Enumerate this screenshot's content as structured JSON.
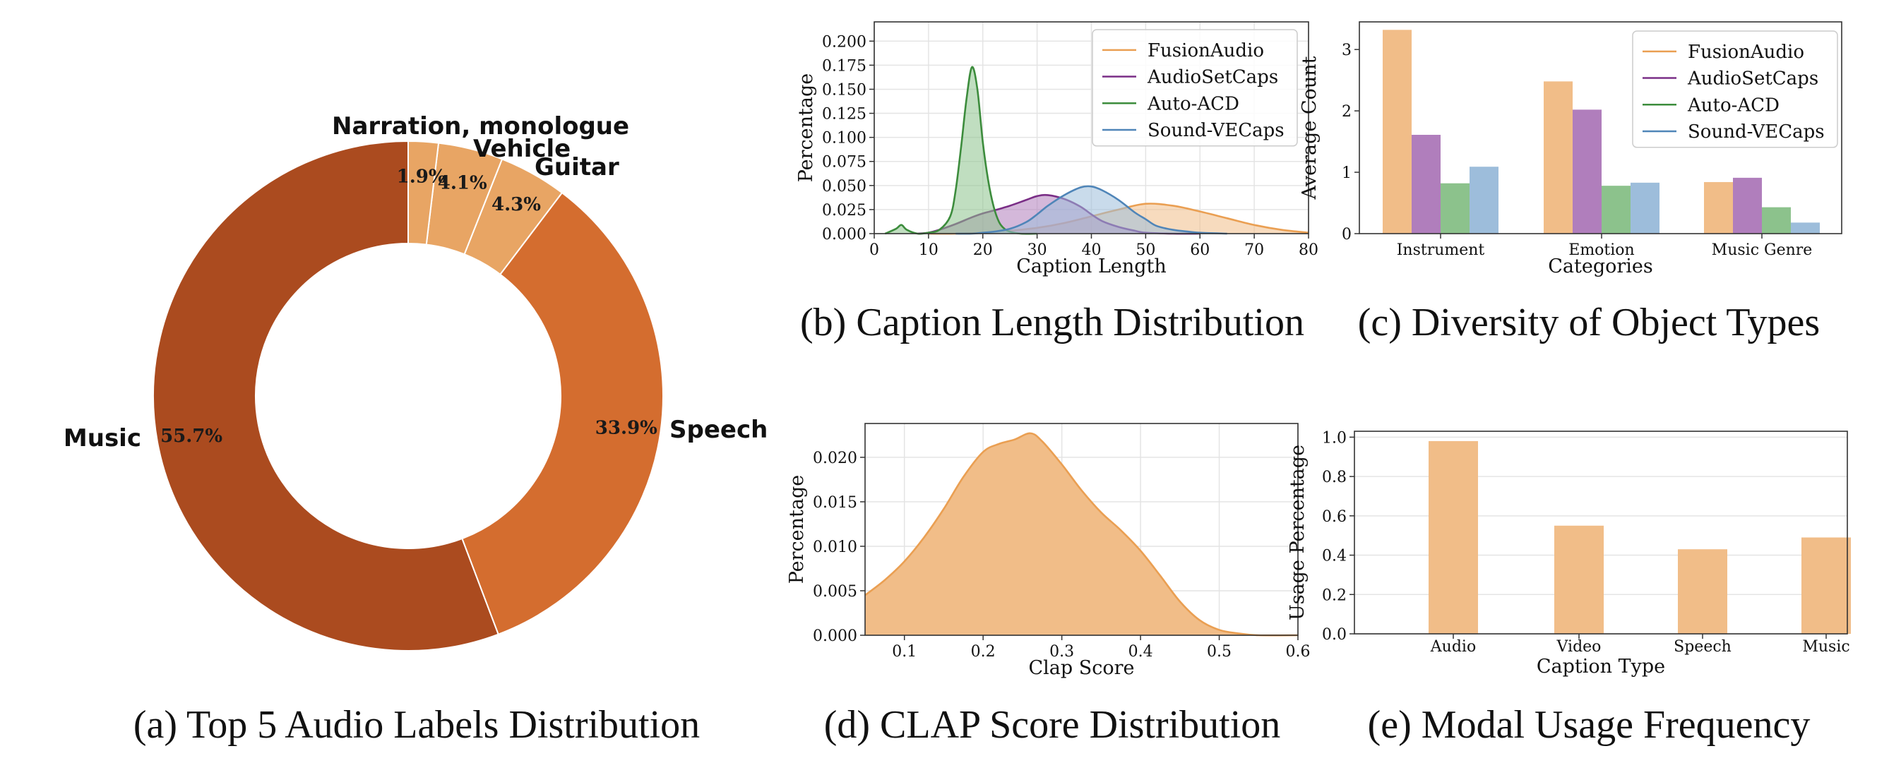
{
  "captions": {
    "a": "(a) Top 5 Audio Labels Distribution",
    "b": "(b) Caption Length Distribution",
    "c": "(c) Diversity of Object Types",
    "d": "(d) CLAP Score Distribution",
    "e": "(e) Modal Usage Frequency"
  },
  "colors": {
    "fusionaudio": "#ea9f52",
    "fusionaudio_fill": "#f1bd88",
    "audiosetcaps": "#7a2e86",
    "audiosetcaps_fill": "#b07ebc",
    "autoacd": "#3c8c3c",
    "autoacd_fill": "#8cc28c",
    "soundvecaps": "#4f85b8",
    "soundvecaps_fill": "#9dbddb",
    "pie": [
      "#ab4b1f",
      "#d46d2f",
      "#e8a564",
      "#e8a564",
      "#e8a564"
    ]
  },
  "chart_data": [
    {
      "id": "a",
      "type": "pie",
      "donut": true,
      "slices": [
        {
          "label": "Music",
          "value": 55.7,
          "pct_label": "55.7%"
        },
        {
          "label": "Speech",
          "value": 33.9,
          "pct_label": "33.9%"
        },
        {
          "label": "Guitar",
          "value": 4.3,
          "pct_label": "4.3%"
        },
        {
          "label": "Vehicle",
          "value": 4.1,
          "pct_label": "4.1%"
        },
        {
          "label": "Narration, monologue",
          "value": 1.9,
          "pct_label": "1.9%"
        }
      ]
    },
    {
      "id": "b",
      "type": "area",
      "xlabel": "Caption Length",
      "ylabel": "Percentage",
      "xlim": [
        0,
        80
      ],
      "ylim": [
        0,
        0.22
      ],
      "xticks": [
        0,
        10,
        20,
        30,
        40,
        50,
        60,
        70,
        80
      ],
      "xtick_labels": [
        "0",
        "10",
        "20",
        "30",
        "40",
        "50",
        "60",
        "70",
        "80"
      ],
      "yticks": [
        0,
        0.025,
        0.05,
        0.075,
        0.1,
        0.125,
        0.15,
        0.175,
        0.2
      ],
      "ytick_labels": [
        "0.000",
        "0.025",
        "0.050",
        "0.075",
        "0.100",
        "0.125",
        "0.150",
        "0.175",
        "0.200"
      ],
      "grid": true,
      "legend": "top-right",
      "series": [
        {
          "name": "FusionAudio",
          "key": "fusionaudio",
          "x": [
            10,
            15,
            20,
            25,
            30,
            35,
            40,
            45,
            50,
            55,
            60,
            65,
            70,
            75,
            80
          ],
          "y": [
            0.0,
            0.0,
            0.001,
            0.003,
            0.006,
            0.011,
            0.018,
            0.025,
            0.031,
            0.029,
            0.023,
            0.016,
            0.009,
            0.004,
            0.001
          ]
        },
        {
          "name": "AudioSetCaps",
          "key": "audiosetcaps",
          "x": [
            8,
            10,
            12,
            15,
            18,
            20,
            22,
            25,
            28,
            30,
            32,
            35,
            38,
            40,
            42,
            45,
            48,
            50,
            55,
            60
          ],
          "y": [
            0.0,
            0.001,
            0.004,
            0.01,
            0.017,
            0.021,
            0.024,
            0.029,
            0.035,
            0.039,
            0.04,
            0.036,
            0.028,
            0.02,
            0.013,
            0.007,
            0.003,
            0.001,
            0.0,
            0.0
          ]
        },
        {
          "name": "Auto-ACD",
          "key": "autoacd",
          "x": [
            2,
            4,
            5,
            6,
            8,
            10,
            12,
            14,
            15,
            16,
            17,
            18,
            19,
            20,
            21,
            22,
            23,
            24,
            25,
            27,
            30
          ],
          "y": [
            0.0,
            0.005,
            0.009,
            0.004,
            0.0,
            0.001,
            0.004,
            0.018,
            0.045,
            0.09,
            0.14,
            0.173,
            0.15,
            0.095,
            0.055,
            0.028,
            0.012,
            0.005,
            0.002,
            0.0,
            0.0
          ]
        },
        {
          "name": "Sound-VECaps",
          "key": "soundvecaps",
          "x": [
            15,
            18,
            20,
            22,
            25,
            28,
            30,
            32,
            35,
            38,
            40,
            42,
            45,
            48,
            50,
            52,
            55,
            58,
            60,
            65
          ],
          "y": [
            0.0,
            0.0,
            0.001,
            0.002,
            0.005,
            0.012,
            0.02,
            0.029,
            0.04,
            0.048,
            0.049,
            0.045,
            0.035,
            0.022,
            0.015,
            0.008,
            0.004,
            0.002,
            0.001,
            0.0
          ]
        }
      ]
    },
    {
      "id": "c",
      "type": "bar",
      "xlabel": "Categories",
      "ylabel": "Average Count",
      "categories": [
        "Instrument",
        "Emotion",
        "Music Genre"
      ],
      "ylim": [
        0,
        3.45
      ],
      "yticks": [
        0,
        1,
        2,
        3
      ],
      "ytick_labels": [
        "0",
        "1",
        "2",
        "3"
      ],
      "grid": false,
      "legend": "top-right",
      "series": [
        {
          "name": "FusionAudio",
          "key": "fusionaudio",
          "values": [
            3.32,
            2.48,
            0.84
          ]
        },
        {
          "name": "AudioSetCaps",
          "key": "audiosetcaps",
          "values": [
            1.61,
            2.02,
            0.91
          ]
        },
        {
          "name": "Auto-ACD",
          "key": "autoacd",
          "values": [
            0.82,
            0.78,
            0.43
          ]
        },
        {
          "name": "Sound-VECaps",
          "key": "soundvecaps",
          "values": [
            1.09,
            0.83,
            0.18
          ]
        }
      ]
    },
    {
      "id": "d",
      "type": "area",
      "xlabel": "Clap Score",
      "ylabel": "Percentage",
      "xlim": [
        0.05,
        0.6
      ],
      "ylim": [
        0,
        0.0238
      ],
      "xticks": [
        0.1,
        0.2,
        0.3,
        0.4,
        0.5,
        0.6
      ],
      "xtick_labels": [
        "0.1",
        "0.2",
        "0.3",
        "0.4",
        "0.5",
        "0.6"
      ],
      "yticks": [
        0,
        0.005,
        0.01,
        0.015,
        0.02
      ],
      "ytick_labels": [
        "0.000",
        "0.005",
        "0.010",
        "0.015",
        "0.020"
      ],
      "grid": true,
      "series": [
        {
          "name": "",
          "key": "fusionaudio",
          "x": [
            0.05,
            0.075,
            0.1,
            0.125,
            0.15,
            0.175,
            0.2,
            0.22,
            0.24,
            0.26,
            0.275,
            0.3,
            0.325,
            0.35,
            0.375,
            0.4,
            0.425,
            0.45,
            0.475,
            0.5,
            0.525,
            0.55,
            0.6
          ],
          "y": [
            0.0045,
            0.0062,
            0.0083,
            0.011,
            0.0142,
            0.0178,
            0.0206,
            0.0215,
            0.022,
            0.0227,
            0.0218,
            0.0192,
            0.0163,
            0.0138,
            0.0118,
            0.0095,
            0.0067,
            0.0038,
            0.0017,
            0.0006,
            0.0002,
            0.0,
            0.0
          ]
        }
      ]
    },
    {
      "id": "e",
      "type": "bar",
      "xlabel": "Caption Type",
      "ylabel": "Usage Percentage",
      "categories": [
        "Audio",
        "Video",
        "Speech",
        "Music"
      ],
      "values": [
        0.98,
        0.55,
        0.43,
        0.49
      ],
      "ylim": [
        0,
        1.03
      ],
      "yticks": [
        0,
        0.2,
        0.4,
        0.6,
        0.8,
        1.0
      ],
      "ytick_labels": [
        "0.0",
        "0.2",
        "0.4",
        "0.6",
        "0.8",
        "1.0"
      ],
      "grid": true
    }
  ]
}
